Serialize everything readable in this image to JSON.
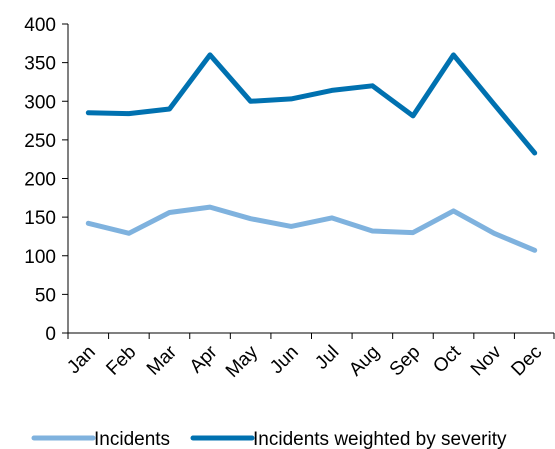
{
  "chart_data": {
    "type": "line",
    "categories": [
      "Jan",
      "Feb",
      "Mar",
      "Apr",
      "May",
      "Jun",
      "Jul",
      "Aug",
      "Sep",
      "Oct",
      "Nov",
      "Dec"
    ],
    "series": [
      {
        "name": "Incidents",
        "color": "#7FB2DE",
        "values": [
          142,
          129,
          156,
          163,
          148,
          138,
          149,
          132,
          130,
          158,
          129,
          107
        ]
      },
      {
        "name": "Incidents weighted by severity",
        "color": "#0071B0",
        "values": [
          285,
          284,
          290,
          360,
          300,
          303,
          314,
          320,
          281,
          360,
          296,
          233
        ]
      }
    ],
    "ylim": [
      0,
      400
    ],
    "yticks": [
      0,
      50,
      100,
      150,
      200,
      250,
      300,
      350,
      400
    ],
    "grid": false,
    "legend_position": "bottom"
  }
}
